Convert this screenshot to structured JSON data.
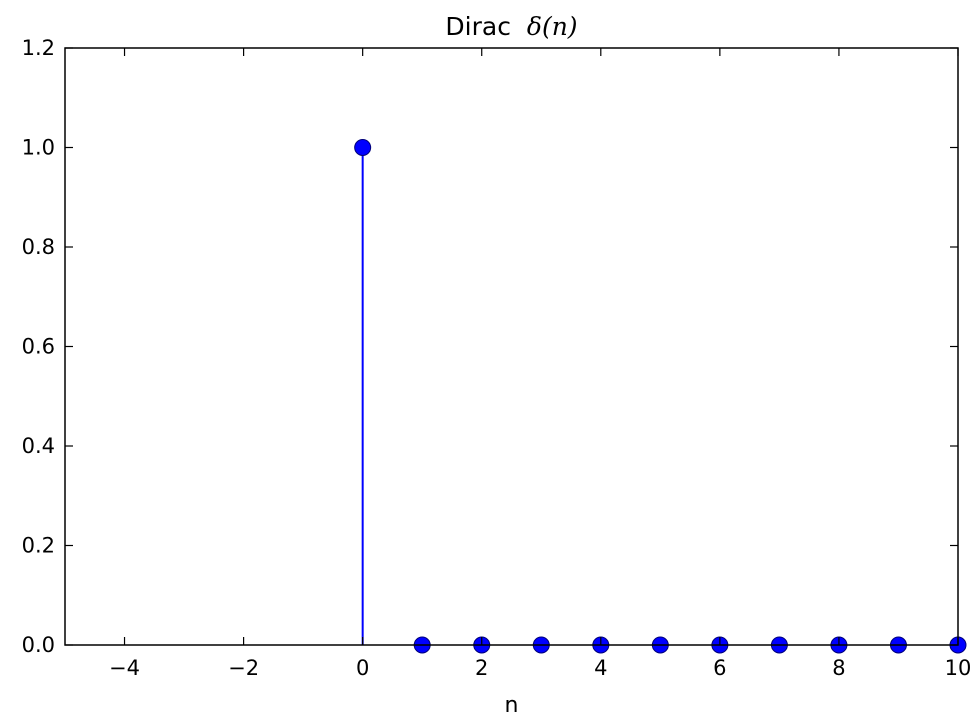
{
  "chart_data": {
    "type": "scatter",
    "style": "stem",
    "title": "Dirac",
    "title_math": "δ(n)",
    "xlabel": "n",
    "ylabel": "",
    "xlim": [
      -5,
      10
    ],
    "ylim": [
      0,
      1.2
    ],
    "xticks": [
      -4,
      -2,
      0,
      2,
      4,
      6,
      8,
      10
    ],
    "xtick_labels": [
      "−4",
      "−2",
      "0",
      "2",
      "4",
      "6",
      "8",
      "10"
    ],
    "yticks": [
      0,
      0.2,
      0.4,
      0.6,
      0.8,
      1.0,
      1.2
    ],
    "ytick_labels": [
      "0.0",
      "0.2",
      "0.4",
      "0.6",
      "0.8",
      "1.0",
      "1.2"
    ],
    "grid": false,
    "series": [
      {
        "color": "#0000ff",
        "x": [
          0,
          1,
          2,
          3,
          4,
          5,
          6,
          7,
          8,
          9,
          10
        ],
        "y": [
          1,
          0,
          0,
          0,
          0,
          0,
          0,
          0,
          0,
          0,
          0
        ]
      }
    ]
  }
}
